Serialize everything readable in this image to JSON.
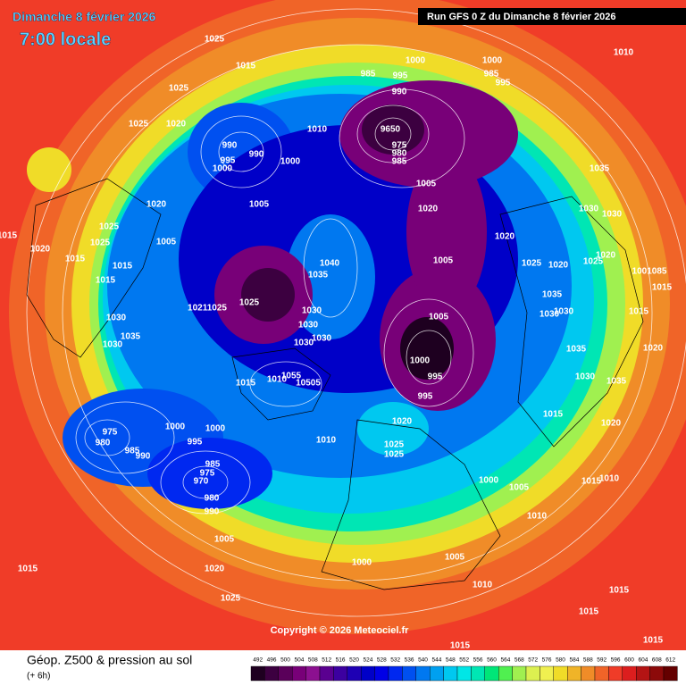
{
  "header": {
    "date": "Dimanche 8 février 2026",
    "time": "7:00 locale",
    "run": "Run GFS 0 Z du Dimanche 8 février 2026"
  },
  "copyright": "Copyright © 2026 Meteociel.fr",
  "footer": {
    "title": "Géop. Z500 & pression au sol",
    "step": "(+ 6h)"
  },
  "legend": {
    "ticks": [
      492,
      496,
      500,
      504,
      508,
      512,
      516,
      520,
      524,
      528,
      532,
      536,
      540,
      544,
      548,
      552,
      556,
      560,
      564,
      568,
      572,
      576,
      580,
      584,
      588,
      592,
      596,
      600,
      604,
      608,
      612
    ],
    "colors": [
      "#1e0020",
      "#3c0040",
      "#5a005a",
      "#780078",
      "#8c1090",
      "#5a0090",
      "#3c00a0",
      "#1e00b4",
      "#0000c8",
      "#0000e6",
      "#0028f0",
      "#0050f0",
      "#0078f0",
      "#00a0f0",
      "#00c8f0",
      "#00e6e6",
      "#00e6b4",
      "#00e678",
      "#50f050",
      "#a0f050",
      "#dcf050",
      "#f0f050",
      "#f0dc28",
      "#f0b428",
      "#f08c28",
      "#f06428",
      "#f03c28",
      "#dc1e1e",
      "#b41414",
      "#8c0a0a",
      "#640000"
    ]
  },
  "pressure_labels": [
    "1025",
    "1015",
    "1025",
    "1025",
    "1020",
    "985",
    "995",
    "1000",
    "990",
    "1000",
    "985",
    "995",
    "1010",
    "990",
    "995",
    "990",
    "1000",
    "1000",
    "1010",
    "9650",
    "975",
    "980",
    "985",
    "1005",
    "1020",
    "1035",
    "1020",
    "1005",
    "1030",
    "1030",
    "1015",
    "1020",
    "1025",
    "1025",
    "1005",
    "1020",
    "1015",
    "1015",
    "1015",
    "1040",
    "1035",
    "1005",
    "1025",
    "1020",
    "1025",
    "1020",
    "1001085",
    "1015",
    "1035",
    "10211025",
    "1025",
    "1030",
    "1030",
    "1030",
    "1015",
    "1005",
    "1030",
    "1035",
    "1030",
    "1030",
    "1030",
    "1030",
    "1000",
    "995",
    "1020",
    "1035",
    "1015",
    "1010",
    "1055",
    "10505",
    "1030",
    "1035",
    "995",
    "1020",
    "1020",
    "975",
    "980",
    "1000",
    "1000",
    "995",
    "1010",
    "1025",
    "1025",
    "985",
    "990",
    "1015",
    "985",
    "975",
    "970",
    "980",
    "990",
    "1000",
    "1005",
    "1015",
    "1010",
    "1010",
    "1005",
    "1005",
    "1000",
    "1015",
    "1020",
    "1010",
    "1025",
    "1015",
    "1015",
    "1015",
    "1015"
  ]
}
